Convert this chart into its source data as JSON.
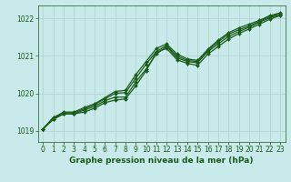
{
  "background_color": "#c8eaea",
  "grid_color": "#b0d0d0",
  "line_color": "#1a5c1a",
  "marker": "D",
  "marker_size": 2,
  "line_width": 0.9,
  "xlabel": "Graphe pression niveau de la mer (hPa)",
  "xlabel_fontsize": 6.5,
  "xlabel_bold": true,
  "xlabel_color": "#1a5c1a",
  "tick_color": "#1a5c1a",
  "tick_fontsize": 5.5,
  "ylim": [
    1018.7,
    1022.35
  ],
  "xlim": [
    -0.5,
    23.5
  ],
  "yticks": [
    1019,
    1020,
    1021,
    1022
  ],
  "xticks": [
    0,
    1,
    2,
    3,
    4,
    5,
    6,
    7,
    8,
    9,
    10,
    11,
    12,
    13,
    14,
    15,
    16,
    17,
    18,
    19,
    20,
    21,
    22,
    23
  ],
  "series": [
    [
      1019.05,
      1019.35,
      1019.45,
      1019.45,
      1019.5,
      1019.6,
      1019.75,
      1019.82,
      1019.85,
      1020.2,
      1020.6,
      1021.1,
      1021.2,
      1020.9,
      1020.8,
      1020.75,
      1021.05,
      1021.25,
      1021.45,
      1021.6,
      1021.72,
      1021.85,
      1021.98,
      1022.08
    ],
    [
      1019.05,
      1019.3,
      1019.45,
      1019.45,
      1019.55,
      1019.65,
      1019.8,
      1019.9,
      1019.9,
      1020.3,
      1020.65,
      1021.05,
      1021.25,
      1020.95,
      1020.85,
      1020.82,
      1021.12,
      1021.32,
      1021.52,
      1021.65,
      1021.77,
      1021.9,
      1022.02,
      1022.1
    ],
    [
      1019.05,
      1019.32,
      1019.48,
      1019.48,
      1019.58,
      1019.7,
      1019.85,
      1020.0,
      1020.02,
      1020.4,
      1020.78,
      1021.12,
      1021.28,
      1021.0,
      1020.88,
      1020.85,
      1021.15,
      1021.38,
      1021.58,
      1021.7,
      1021.8,
      1021.92,
      1022.05,
      1022.12
    ],
    [
      1019.05,
      1019.35,
      1019.5,
      1019.5,
      1019.62,
      1019.72,
      1019.88,
      1020.05,
      1020.08,
      1020.5,
      1020.85,
      1021.2,
      1021.32,
      1021.05,
      1020.92,
      1020.88,
      1021.18,
      1021.42,
      1021.62,
      1021.75,
      1021.85,
      1021.95,
      1022.08,
      1022.15
    ]
  ]
}
